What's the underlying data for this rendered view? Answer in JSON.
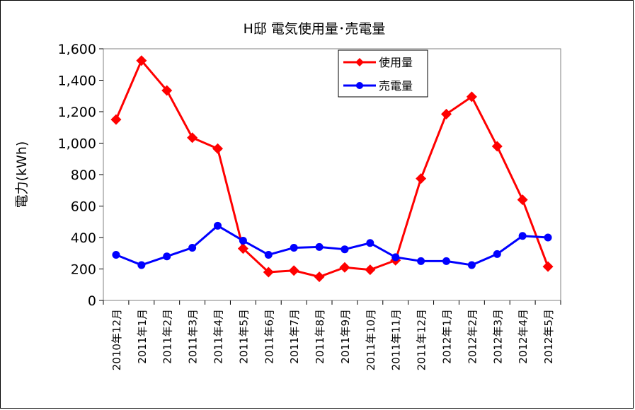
{
  "chart_data": {
    "type": "line",
    "title": "H邸 電気使用量･売電量",
    "xlabel": "",
    "ylabel": "電力(kWh)",
    "ylim": [
      0,
      1600
    ],
    "yticks": [
      "0",
      "200",
      "400",
      "600",
      "800",
      "1,000",
      "1,200",
      "1,400",
      "1,600"
    ],
    "categories": [
      "2010年12月",
      "2011年1月",
      "2011年2月",
      "2011年3月",
      "2011年4月",
      "2011年5月",
      "2011年6月",
      "2011年7月",
      "2011年8月",
      "2011年9月",
      "2011年10月",
      "2011年11月",
      "2011年12月",
      "2012年1月",
      "2012年2月",
      "2012年3月",
      "2012年4月",
      "2012年5月"
    ],
    "series": [
      {
        "name": "使用量",
        "color": "#ff0000",
        "marker": "diamond",
        "values": [
          1150,
          1525,
          1335,
          1035,
          965,
          330,
          180,
          190,
          150,
          210,
          195,
          255,
          775,
          1185,
          1295,
          980,
          640,
          215
        ]
      },
      {
        "name": "売電量",
        "color": "#0000ff",
        "marker": "circle",
        "values": [
          290,
          225,
          280,
          335,
          475,
          380,
          290,
          335,
          340,
          325,
          365,
          275,
          250,
          250,
          225,
          295,
          410,
          400
        ]
      }
    ],
    "grid": false,
    "legend": "top-right"
  }
}
